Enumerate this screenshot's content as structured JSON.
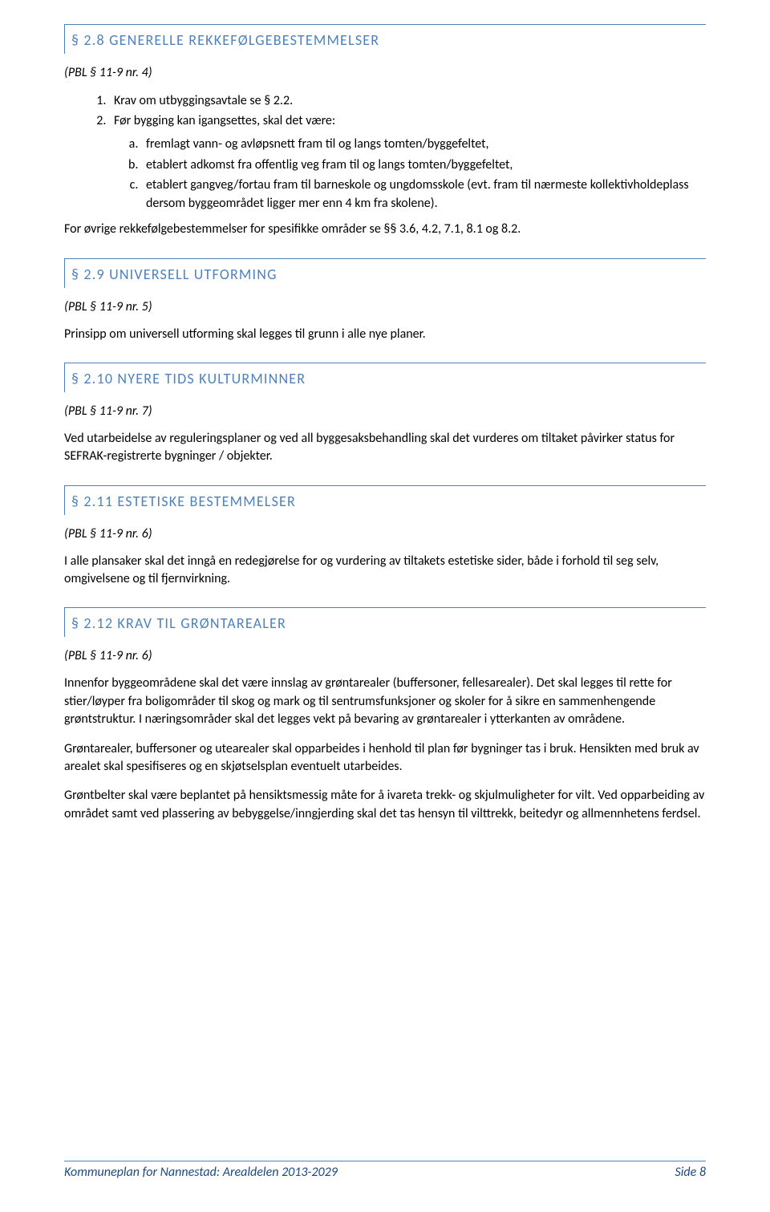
{
  "colors": {
    "heading": "#4f81bd",
    "headingBorder": "#4f81bd",
    "footerBorder": "#4f81bd",
    "footerText": "#1f497d",
    "bodyText": "#000000",
    "background": "#ffffff"
  },
  "typography": {
    "headingFontSize": 18,
    "headingLetterSpacing": 1.2,
    "bodyFontSize": 16,
    "pblFontStyle": "italic",
    "footerFontStyle": "italic"
  },
  "sections": {
    "s28": {
      "title": "§ 2.8 GENERELLE REKKEFØLGEBESTEMMELSER",
      "pbl": "(PBL § 11-9 nr. 4)",
      "numbered": [
        "Krav om utbyggingsavtale se § 2.2.",
        "Før bygging kan igangsettes, skal det være:"
      ],
      "lettered": [
        "fremlagt vann- og avløpsnett fram til og langs tomten/byggefeltet,",
        "etablert adkomst fra offentlig veg fram til og langs tomten/byggefeltet,",
        "etablert gangveg/fortau fram til barneskole og ungdomsskole (evt. fram til nærmeste kollektivholdeplass dersom byggeområdet ligger mer enn 4 km fra skolene)."
      ],
      "tail": "For øvrige rekkefølgebestemmelser for spesifikke områder se §§ 3.6, 4.2, 7.1, 8.1 og 8.2."
    },
    "s29": {
      "title": "§ 2.9 UNIVERSELL UTFORMING",
      "pbl": "(PBL § 11-9 nr. 5)",
      "body": "Prinsipp om universell utforming skal legges til grunn i alle nye planer."
    },
    "s210": {
      "title": "§ 2.10 NYERE TIDS KULTURMINNER",
      "pbl": "(PBL § 11-9 nr. 7)",
      "body": "Ved utarbeidelse av reguleringsplaner og ved all byggesaksbehandling skal det vurderes om tiltaket påvirker status for SEFRAK-registrerte bygninger / objekter."
    },
    "s211": {
      "title": "§ 2.11 ESTETISKE BESTEMMELSER",
      "pbl": "(PBL § 11-9 nr. 6)",
      "body": "I alle plansaker skal det inngå en redegjørelse for og vurdering av tiltakets estetiske sider, både i forhold til seg selv, omgivelsene og til fjernvirkning."
    },
    "s212": {
      "title": "§ 2.12 KRAV TIL GRØNTAREALER",
      "pbl": "(PBL § 11-9 nr. 6)",
      "p1": "Innenfor byggeområdene skal det være innslag av grøntarealer (buffersoner, fellesarealer). Det skal legges til rette for stier/løyper fra boligområder til skog og mark og til sentrumsfunksjoner og skoler for å sikre en sammenhengende grøntstruktur. I næringsområder skal det legges vekt på bevaring av grøntarealer i ytterkanten av områdene.",
      "p2": "Grøntarealer, buffersoner og utearealer skal opparbeides i henhold til plan før bygninger tas i bruk. Hensikten med bruk av arealet skal spesifiseres og en skjøtselsplan eventuelt utarbeides.",
      "p3": "Grøntbelter skal være beplantet på hensiktsmessig måte for å ivareta trekk- og skjulmuligheter for vilt. Ved opparbeiding av området samt ved plassering av bebyggelse/inngjerding skal det tas hensyn til vilttrekk, beitedyr og allmennhetens ferdsel."
    }
  },
  "footer": {
    "left": "Kommuneplan for Nannestad: Arealdelen 2013-2029",
    "right": "Side 8"
  }
}
